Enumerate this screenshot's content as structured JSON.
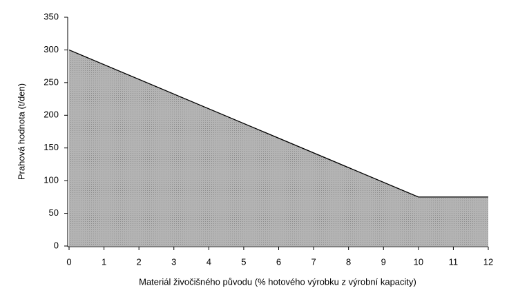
{
  "chart_data": {
    "type": "area",
    "xlabel": "Materiál živočišného původu (% hotového výrobku z výrobní kapacity)",
    "ylabel": "Prahová hodnota (t/den)",
    "x": [
      0,
      10,
      12
    ],
    "values": [
      300,
      75,
      75
    ],
    "color": "#a9a9a9",
    "xlim": [
      0,
      12
    ],
    "xticks": [
      0,
      1,
      2,
      3,
      4,
      5,
      6,
      7,
      8,
      9,
      10,
      11,
      12
    ],
    "ylim": [
      0,
      350
    ],
    "yticks": [
      0,
      50,
      100,
      150,
      200,
      250,
      300,
      350
    ]
  }
}
